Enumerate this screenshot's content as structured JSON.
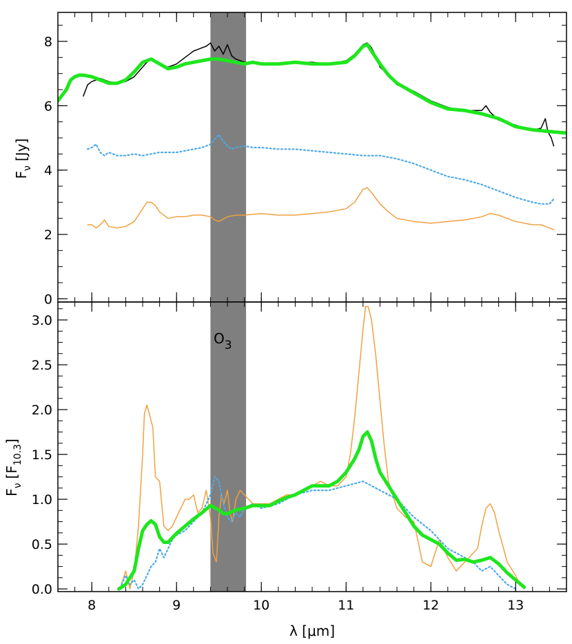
{
  "chart_data": [
    {
      "type": "line",
      "panel": "top",
      "ylabel": "Fν [Jy]",
      "ylabel_main": "F",
      "ylabel_sub": "ν",
      "ylabel_unit": "[Jy]",
      "xlim": [
        7.6,
        13.6
      ],
      "ylim": [
        -0.1,
        8.9
      ],
      "yticks": [
        0,
        2,
        4,
        6,
        8
      ],
      "ytick_labels": [
        "0",
        "2",
        "4",
        "6",
        "8"
      ],
      "band": {
        "x0": 9.4,
        "x1": 9.82,
        "color": "#7f7f7f"
      },
      "colors": {
        "black": "#000000",
        "green": "#1ee61e",
        "blue": "#4aa8e8",
        "orange": "#f0a040"
      },
      "series": [
        {
          "style": "black-thin",
          "x": [
            7.9,
            7.95,
            8.0,
            8.05,
            8.1,
            8.2,
            8.3,
            8.4,
            8.5,
            8.6,
            8.65,
            8.7,
            8.75,
            8.8,
            8.85,
            8.9,
            9.0,
            9.1,
            9.15,
            9.2,
            9.25,
            9.3,
            9.35,
            9.4,
            9.45,
            9.5,
            9.55,
            9.6,
            9.65,
            9.7,
            9.75,
            9.8,
            9.9,
            10.0,
            10.2,
            10.4,
            10.6,
            10.8,
            10.9,
            11.0,
            11.1,
            11.15,
            11.2,
            11.25,
            11.3,
            11.35,
            11.4,
            11.5,
            11.6,
            11.8,
            12.0,
            12.2,
            12.4,
            12.6,
            12.65,
            12.7,
            12.8,
            13.0,
            13.1,
            13.2,
            13.3,
            13.35,
            13.38,
            13.42,
            13.45
          ],
          "y": [
            6.3,
            6.65,
            6.75,
            6.8,
            6.85,
            6.75,
            6.7,
            6.75,
            6.9,
            7.2,
            7.35,
            7.45,
            7.4,
            7.3,
            7.25,
            7.2,
            7.3,
            7.5,
            7.6,
            7.7,
            7.75,
            7.8,
            7.85,
            7.95,
            7.7,
            7.85,
            7.6,
            7.9,
            7.55,
            7.45,
            7.4,
            7.35,
            7.35,
            7.3,
            7.3,
            7.35,
            7.35,
            7.3,
            7.35,
            7.4,
            7.6,
            7.75,
            7.9,
            7.95,
            7.8,
            7.55,
            7.2,
            6.95,
            6.65,
            6.45,
            6.15,
            5.95,
            5.85,
            5.85,
            6.0,
            5.8,
            5.55,
            5.4,
            5.3,
            5.25,
            5.3,
            5.6,
            5.2,
            5.0,
            4.75
          ]
        },
        {
          "style": "green-thick",
          "x": [
            7.6,
            7.7,
            7.75,
            7.8,
            7.85,
            7.9,
            8.0,
            8.1,
            8.2,
            8.3,
            8.4,
            8.5,
            8.6,
            8.7,
            8.8,
            8.9,
            9.0,
            9.1,
            9.2,
            9.3,
            9.4,
            9.5,
            9.6,
            9.7,
            9.8,
            9.9,
            10.0,
            10.2,
            10.4,
            10.6,
            10.8,
            11.0,
            11.1,
            11.2,
            11.25,
            11.3,
            11.4,
            11.5,
            11.6,
            11.8,
            12.0,
            12.2,
            12.4,
            12.6,
            12.8,
            13.0,
            13.2,
            13.4,
            13.6
          ],
          "y": [
            6.15,
            6.5,
            6.8,
            6.9,
            6.95,
            6.95,
            6.9,
            6.8,
            6.7,
            6.7,
            6.8,
            7.05,
            7.35,
            7.45,
            7.3,
            7.15,
            7.2,
            7.3,
            7.35,
            7.4,
            7.45,
            7.45,
            7.4,
            7.35,
            7.3,
            7.35,
            7.3,
            7.3,
            7.35,
            7.3,
            7.3,
            7.35,
            7.55,
            7.85,
            7.9,
            7.7,
            7.3,
            6.95,
            6.7,
            6.4,
            6.1,
            5.9,
            5.85,
            5.75,
            5.6,
            5.35,
            5.25,
            5.2,
            5.15
          ]
        },
        {
          "style": "blue-dotted",
          "x": [
            7.95,
            8.0,
            8.05,
            8.1,
            8.15,
            8.2,
            8.3,
            8.4,
            8.5,
            8.6,
            8.7,
            8.8,
            8.9,
            9.0,
            9.1,
            9.2,
            9.3,
            9.4,
            9.45,
            9.5,
            9.55,
            9.6,
            9.65,
            9.7,
            9.8,
            9.9,
            10.0,
            10.2,
            10.4,
            10.6,
            10.8,
            11.0,
            11.2,
            11.4,
            11.6,
            11.8,
            12.0,
            12.2,
            12.4,
            12.6,
            12.8,
            13.0,
            13.2,
            13.3,
            13.4,
            13.45
          ],
          "y": [
            4.65,
            4.7,
            4.8,
            4.55,
            4.45,
            4.55,
            4.45,
            4.45,
            4.5,
            4.45,
            4.5,
            4.55,
            4.55,
            4.55,
            4.6,
            4.65,
            4.7,
            4.8,
            4.95,
            5.1,
            4.9,
            4.75,
            4.65,
            4.7,
            4.75,
            4.7,
            4.7,
            4.65,
            4.65,
            4.6,
            4.55,
            4.5,
            4.45,
            4.45,
            4.35,
            4.2,
            4.0,
            3.8,
            3.7,
            3.55,
            3.35,
            3.15,
            3.0,
            2.95,
            2.95,
            3.1
          ]
        },
        {
          "style": "orange-thin",
          "x": [
            7.95,
            8.0,
            8.05,
            8.1,
            8.15,
            8.2,
            8.3,
            8.4,
            8.5,
            8.55,
            8.6,
            8.65,
            8.7,
            8.75,
            8.8,
            8.9,
            9.0,
            9.1,
            9.2,
            9.3,
            9.4,
            9.45,
            9.5,
            9.6,
            9.7,
            9.8,
            10.0,
            10.2,
            10.4,
            10.6,
            10.8,
            11.0,
            11.1,
            11.2,
            11.25,
            11.3,
            11.4,
            11.5,
            11.6,
            11.8,
            12.0,
            12.2,
            12.4,
            12.5,
            12.6,
            12.7,
            12.8,
            12.9,
            13.0,
            13.2,
            13.3,
            13.4,
            13.45
          ],
          "y": [
            2.3,
            2.3,
            2.2,
            2.3,
            2.45,
            2.25,
            2.2,
            2.25,
            2.4,
            2.6,
            2.8,
            3.0,
            3.0,
            2.9,
            2.7,
            2.5,
            2.55,
            2.55,
            2.6,
            2.6,
            2.55,
            2.45,
            2.4,
            2.55,
            2.6,
            2.6,
            2.65,
            2.6,
            2.6,
            2.65,
            2.7,
            2.8,
            3.0,
            3.4,
            3.45,
            3.3,
            2.95,
            2.7,
            2.5,
            2.4,
            2.35,
            2.4,
            2.45,
            2.5,
            2.55,
            2.65,
            2.6,
            2.5,
            2.4,
            2.3,
            2.3,
            2.2,
            2.15
          ]
        }
      ]
    },
    {
      "type": "line",
      "panel": "bottom",
      "ylabel": "Fν [F10.3]",
      "ylabel_main": "F",
      "ylabel_sub": "ν",
      "ylabel_unit_main": "[F",
      "ylabel_unit_sub": "10.3",
      "ylabel_unit_close": "]",
      "xlabel": "λ [μm]",
      "xlim": [
        7.6,
        13.6
      ],
      "ylim": [
        -0.03,
        3.2
      ],
      "xticks": [
        8,
        9,
        10,
        11,
        12,
        13
      ],
      "xtick_labels": [
        "8",
        "9",
        "10",
        "11",
        "12",
        "13"
      ],
      "yticks": [
        0.0,
        0.5,
        1.0,
        1.5,
        2.0,
        2.5,
        3.0
      ],
      "ytick_labels": [
        "0.0",
        "0.5",
        "1.0",
        "1.5",
        "2.0",
        "2.5",
        "3.0"
      ],
      "band": {
        "x0": 9.4,
        "x1": 9.82,
        "color": "#7f7f7f",
        "label_main": "O",
        "label_sub": "3"
      },
      "series": [
        {
          "style": "orange-thin",
          "x": [
            8.35,
            8.4,
            8.45,
            8.5,
            8.55,
            8.6,
            8.62,
            8.65,
            8.68,
            8.72,
            8.75,
            8.8,
            8.85,
            8.9,
            8.95,
            9.0,
            9.05,
            9.1,
            9.15,
            9.2,
            9.25,
            9.3,
            9.35,
            9.4,
            9.43,
            9.47,
            9.5,
            9.53,
            9.56,
            9.6,
            9.63,
            9.66,
            9.7,
            9.75,
            9.8,
            9.9,
            10.0,
            10.1,
            10.2,
            10.3,
            10.4,
            10.5,
            10.6,
            10.7,
            10.8,
            10.9,
            11.0,
            11.05,
            11.1,
            11.15,
            11.2,
            11.23,
            11.26,
            11.3,
            11.35,
            11.4,
            11.45,
            11.5,
            11.6,
            11.7,
            11.8,
            11.9,
            12.0,
            12.1,
            12.2,
            12.3,
            12.4,
            12.5,
            12.55,
            12.6,
            12.65,
            12.7,
            12.75,
            12.8,
            12.9,
            13.0,
            13.05,
            13.1
          ],
          "y": [
            0.05,
            0.2,
            0.0,
            0.2,
            0.7,
            1.5,
            1.95,
            2.05,
            1.95,
            1.8,
            1.25,
            1.2,
            0.7,
            0.65,
            0.7,
            0.8,
            0.9,
            1.0,
            1.0,
            1.05,
            0.85,
            0.9,
            1.1,
            0.8,
            0.4,
            0.3,
            0.8,
            1.05,
            0.95,
            1.1,
            0.85,
            0.75,
            1.0,
            1.1,
            1.05,
            0.95,
            0.95,
            0.95,
            1.0,
            1.05,
            1.05,
            1.1,
            1.15,
            1.2,
            1.15,
            1.15,
            1.25,
            1.5,
            1.9,
            2.4,
            2.9,
            3.15,
            3.15,
            3.0,
            2.6,
            2.1,
            1.6,
            1.2,
            0.9,
            0.8,
            0.75,
            0.3,
            0.25,
            0.55,
            0.35,
            0.2,
            0.3,
            0.4,
            0.45,
            0.7,
            0.9,
            0.95,
            0.85,
            0.65,
            0.3,
            0.15,
            0.05,
            0.0
          ]
        },
        {
          "style": "blue-dotted",
          "x": [
            8.35,
            8.4,
            8.45,
            8.5,
            8.55,
            8.6,
            8.65,
            8.7,
            8.75,
            8.8,
            8.85,
            8.9,
            8.95,
            9.0,
            9.1,
            9.2,
            9.3,
            9.35,
            9.4,
            9.45,
            9.5,
            9.55,
            9.6,
            9.65,
            9.7,
            9.75,
            9.8,
            9.9,
            10.0,
            10.2,
            10.4,
            10.6,
            10.8,
            11.0,
            11.2,
            11.4,
            11.6,
            11.8,
            12.0,
            12.2,
            12.4,
            12.5,
            12.6,
            12.7,
            12.8,
            12.9,
            13.0
          ],
          "y": [
            0.05,
            0.15,
            0.05,
            0.1,
            0.0,
            0.05,
            0.15,
            0.25,
            0.3,
            0.45,
            0.35,
            0.45,
            0.55,
            0.6,
            0.65,
            0.75,
            0.85,
            0.95,
            1.05,
            1.25,
            1.2,
            0.95,
            0.8,
            0.75,
            0.85,
            0.8,
            0.9,
            0.95,
            0.9,
            0.95,
            1.05,
            1.1,
            1.1,
            1.15,
            1.2,
            1.1,
            1.0,
            0.8,
            0.65,
            0.45,
            0.35,
            0.3,
            0.2,
            0.25,
            0.15,
            0.05,
            0.0
          ]
        },
        {
          "style": "green-thick",
          "x": [
            8.32,
            8.4,
            8.5,
            8.55,
            8.6,
            8.65,
            8.7,
            8.75,
            8.8,
            8.85,
            8.9,
            8.95,
            9.0,
            9.1,
            9.2,
            9.3,
            9.4,
            9.5,
            9.55,
            9.6,
            9.7,
            9.8,
            9.9,
            10.0,
            10.1,
            10.2,
            10.3,
            10.4,
            10.5,
            10.6,
            10.7,
            10.8,
            10.9,
            11.0,
            11.1,
            11.15,
            11.2,
            11.25,
            11.3,
            11.35,
            11.4,
            11.5,
            11.6,
            11.7,
            11.8,
            11.9,
            12.0,
            12.1,
            12.2,
            12.3,
            12.4,
            12.5,
            12.6,
            12.7,
            12.8,
            12.9,
            13.0,
            13.1
          ],
          "y": [
            0.0,
            0.05,
            0.2,
            0.45,
            0.65,
            0.72,
            0.76,
            0.72,
            0.58,
            0.52,
            0.52,
            0.57,
            0.62,
            0.7,
            0.78,
            0.85,
            0.93,
            0.88,
            0.84,
            0.84,
            0.88,
            0.9,
            0.93,
            0.93,
            0.93,
            0.98,
            1.02,
            1.05,
            1.1,
            1.15,
            1.15,
            1.15,
            1.2,
            1.3,
            1.45,
            1.55,
            1.7,
            1.75,
            1.65,
            1.45,
            1.3,
            1.15,
            1.0,
            0.85,
            0.7,
            0.6,
            0.55,
            0.5,
            0.4,
            0.32,
            0.33,
            0.3,
            0.32,
            0.35,
            0.28,
            0.18,
            0.1,
            0.02
          ]
        }
      ]
    }
  ]
}
